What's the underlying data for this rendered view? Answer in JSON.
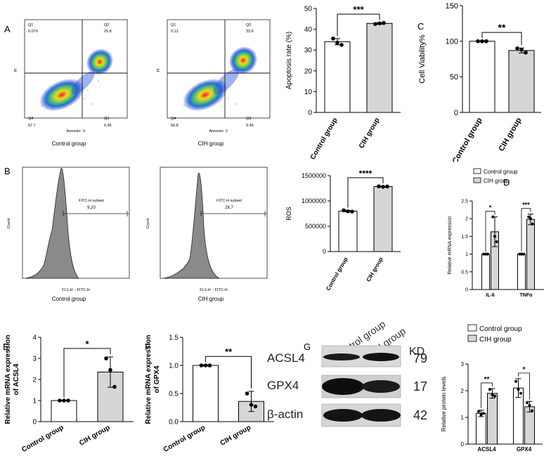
{
  "panels": {
    "A": {
      "letter": "A",
      "flow1": {
        "caption": "Control group",
        "xlabel": "Annexin- V",
        "ylabel": "PI",
        "quads": {
          "q1": "Q1",
          "q1v": "0.079",
          "q2": "Q2",
          "q2v": "25.8",
          "q3": "Q3",
          "q3v": "6.45",
          "q4": "Q4",
          "q4v": "67.7"
        }
      },
      "flow2": {
        "caption": "CIH group",
        "xlabel": "Annexin- V",
        "ylabel": "PI",
        "quads": {
          "q1": "Q1",
          "q1v": "0.12",
          "q2": "Q2",
          "q2v": "33.6",
          "q3": "Q3",
          "q3v": "9.49",
          "q4": "Q4",
          "q4v": "56.8"
        }
      }
    },
    "B": {
      "letter": "B",
      "hist1": {
        "caption": "Control group",
        "xlabel": "FL1-H :: FITC-H",
        "ylabel": "Count",
        "gate": "FITC-H subset",
        "value": "9.20"
      },
      "hist2": {
        "caption": "CIH group",
        "xlabel": "FL1-H :: FITC-H",
        "ylabel": "Count",
        "gate": "FITC-H subset",
        "value": "28.7"
      }
    },
    "C": {
      "letter": "C"
    },
    "D": {
      "letter": "D"
    },
    "E": {
      "letter": "E"
    },
    "F": {
      "letter": "F"
    },
    "G": {
      "letter": "G",
      "kd_header": "KD",
      "lane_labels": [
        "Control group",
        "CIH group"
      ],
      "bands": [
        {
          "name": "ACSL4",
          "kd": "79"
        },
        {
          "name": "GPX4",
          "kd": "17"
        },
        {
          "name": "β-actin",
          "kd": "42"
        }
      ]
    }
  },
  "chart_data": [
    {
      "id": "apoptosis",
      "type": "bar",
      "categories": [
        "Control group",
        "CIH group"
      ],
      "values": [
        34,
        42.8
      ],
      "errors": [
        1.5,
        0.4
      ],
      "points": [
        [
          35.5,
          33.5,
          32.5
        ],
        [
          42.5,
          42.8,
          43.0
        ]
      ],
      "ylabel": "Apoptosis rate (%)",
      "ylim": [
        0,
        50
      ],
      "yticks": [
        0,
        10,
        20,
        30,
        40,
        50
      ],
      "significance": "***"
    },
    {
      "id": "viability",
      "type": "bar",
      "categories": [
        "Control group",
        "CIH group"
      ],
      "values": [
        100,
        87
      ],
      "errors": [
        0.5,
        3.5
      ],
      "points": [
        [
          100,
          100,
          100
        ],
        [
          90,
          88,
          84
        ]
      ],
      "ylabel": "Cell Viability%",
      "ylim": [
        0,
        150
      ],
      "yticks": [
        0,
        50,
        100,
        150
      ],
      "significance": "**"
    },
    {
      "id": "ros",
      "type": "bar",
      "categories": [
        "Control group",
        "CIH group"
      ],
      "values": [
        800000,
        1285000
      ],
      "errors": [
        15000,
        8000
      ],
      "points": [
        [
          815000,
          795000,
          790000
        ],
        [
          1290000,
          1280000,
          1285000
        ]
      ],
      "ylabel": "ROS",
      "ylim": [
        0,
        1500000
      ],
      "yticks": [
        0,
        500000,
        1000000,
        1500000
      ],
      "ytick_labels": [
        "0",
        "500000",
        "1000000",
        "1500000"
      ],
      "significance": "****"
    },
    {
      "id": "mrna",
      "type": "bar",
      "categories": [
        "IL-6",
        "TNFα"
      ],
      "series": [
        {
          "name": "Control group",
          "values": [
            1.0,
            1.0
          ],
          "errors": [
            0.01,
            0.01
          ],
          "points": [
            [
              1.0,
              1.0,
              1.0
            ],
            [
              1.0,
              1.0,
              1.0
            ]
          ]
        },
        {
          "name": "CIH group",
          "values": [
            1.63,
            1.98
          ],
          "errors": [
            0.42,
            0.15
          ],
          "points": [
            [
              2.05,
              1.5,
              1.35
            ],
            [
              2.05,
              2.0,
              1.85
            ]
          ]
        }
      ],
      "ylabel": "Relative mRNA expression",
      "ylim": [
        0,
        2.5
      ],
      "yticks": [
        0,
        0.5,
        1.0,
        1.5,
        2.0,
        2.5
      ],
      "significance": [
        "*",
        "***"
      ],
      "legend": "top"
    },
    {
      "id": "acsl4",
      "type": "bar",
      "categories": [
        "Control group",
        "CIH group"
      ],
      "values": [
        1.0,
        2.35
      ],
      "errors": [
        0.01,
        0.72
      ],
      "points": [
        [
          1.0,
          1.0,
          1.0
        ],
        [
          3.0,
          2.45,
          1.65
        ]
      ],
      "ylabel": "Relative mRNA expression of ACSL4",
      "ylim": [
        0,
        4
      ],
      "yticks": [
        0,
        1,
        2,
        3,
        4
      ],
      "significance": "*"
    },
    {
      "id": "gpx4",
      "type": "bar",
      "categories": [
        "Control group",
        "CIH group"
      ],
      "values": [
        1.0,
        0.36
      ],
      "errors": [
        0.01,
        0.18
      ],
      "points": [
        [
          1.0,
          1.0,
          1.0
        ],
        [
          0.5,
          0.3,
          0.27
        ]
      ],
      "ylabel": "Relative mRNA expression of GPX4",
      "ylim": [
        0,
        1.5
      ],
      "yticks": [
        0,
        0.5,
        1.0,
        1.5
      ],
      "ytick_labels": [
        "0.0",
        "0.5",
        "1.0",
        "1.5"
      ],
      "significance": "**"
    },
    {
      "id": "protein",
      "type": "bar",
      "categories": [
        "ACSL4",
        "GPX4"
      ],
      "series": [
        {
          "name": "Control group",
          "values": [
            1.15,
            2.1
          ],
          "errors": [
            0.12,
            0.35
          ],
          "points": [
            [
              1.22,
              1.1,
              1.15
            ],
            [
              2.35,
              2.05,
              1.9
            ]
          ]
        },
        {
          "name": "CIH group",
          "values": [
            1.9,
            1.4
          ],
          "errors": [
            0.18,
            0.2
          ],
          "points": [
            [
              2.05,
              1.85,
              1.8
            ],
            [
              1.55,
              1.45,
              1.25
            ]
          ]
        }
      ],
      "ylabel": "Relative protein levels",
      "ylim": [
        0,
        3
      ],
      "yticks": [
        0,
        1,
        2,
        3
      ],
      "significance": [
        "**",
        "*"
      ],
      "legend": "top"
    }
  ]
}
